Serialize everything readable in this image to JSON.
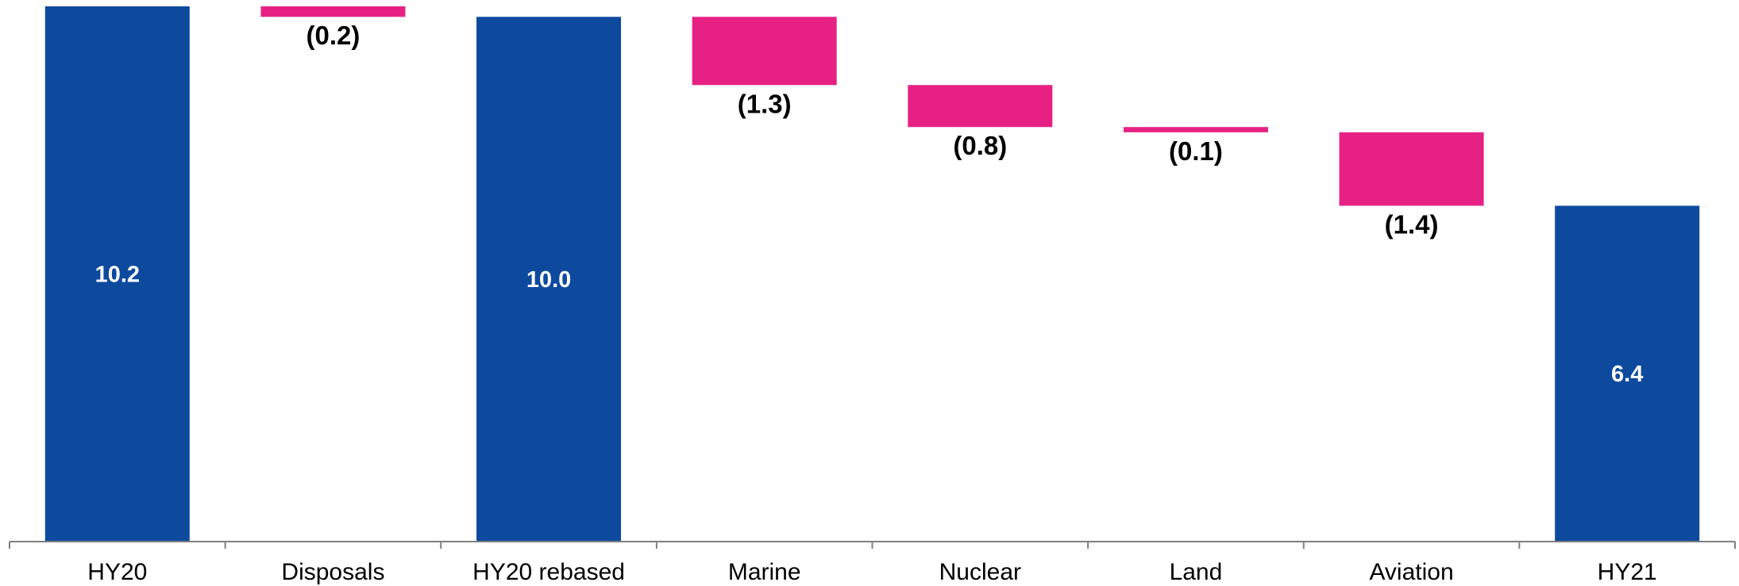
{
  "colors": {
    "total": "#0d4a9e",
    "decrease": "#e62183",
    "axis": "#7f7f7f"
  },
  "chart_data": {
    "type": "bar",
    "subtype": "waterfall",
    "title": "",
    "xlabel": "",
    "ylabel": "",
    "grid": false,
    "legend": "none",
    "categories": [
      "HY20",
      "Disposals",
      "HY20 rebased",
      "Marine",
      "Nuclear",
      "Land",
      "Aviation",
      "HY21"
    ],
    "bars": [
      {
        "category": "HY20",
        "kind": "total",
        "value": 10.2,
        "label": "10.2"
      },
      {
        "category": "Disposals",
        "kind": "decrease",
        "value": -0.2,
        "label": "(0.2)"
      },
      {
        "category": "HY20 rebased",
        "kind": "total",
        "value": 10.0,
        "label": "10.0"
      },
      {
        "category": "Marine",
        "kind": "decrease",
        "value": -1.3,
        "label": "(1.3)"
      },
      {
        "category": "Nuclear",
        "kind": "decrease",
        "value": -0.8,
        "label": "(0.8)"
      },
      {
        "category": "Land",
        "kind": "decrease",
        "value": -0.1,
        "label": "(0.1)"
      },
      {
        "category": "Aviation",
        "kind": "decrease",
        "value": -1.4,
        "label": "(1.4)"
      },
      {
        "category": "HY21",
        "kind": "total",
        "value": 6.4,
        "label": "6.4"
      }
    ]
  }
}
